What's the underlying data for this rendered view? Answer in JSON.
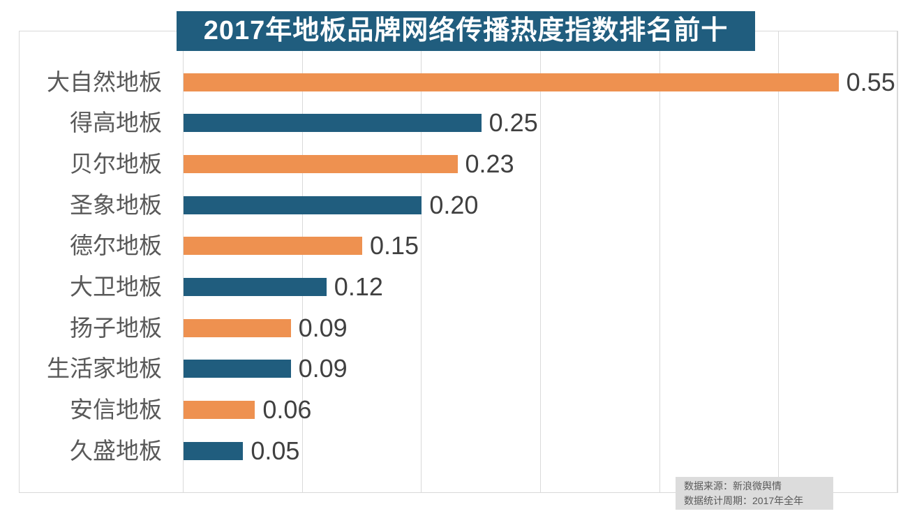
{
  "title": "2017年地板品牌网络传播热度指数排名前十",
  "chart_data": {
    "type": "bar",
    "orientation": "horizontal",
    "title": "2017年地板品牌网络传播热度指数排名前十",
    "categories": [
      "大自然地板",
      "得高地板",
      "贝尔地板",
      "圣象地板",
      "德尔地板",
      "大卫地板",
      "扬子地板",
      "生活家地板",
      "安信地板",
      "久盛地板"
    ],
    "values": [
      0.55,
      0.25,
      0.23,
      0.2,
      0.15,
      0.12,
      0.09,
      0.09,
      0.06,
      0.05
    ],
    "value_labels": [
      "0.55",
      "0.25",
      "0.23",
      "0.20",
      "0.15",
      "0.12",
      "0.09",
      "0.09",
      "0.06",
      "0.05"
    ],
    "xlabel": "",
    "ylabel": "",
    "xlim": [
      0,
      0.6
    ],
    "grid_step": 0.1,
    "grid": "vertical-lines",
    "legend_position": "none",
    "bar_color_alternation": [
      "#EE9150",
      "#205D7E"
    ]
  },
  "footer_note": {
    "line1": "数据来源：新浪微舆情",
    "line2": "数据统计周期：2017年全年"
  },
  "colors": {
    "background": "#FFFFFF",
    "title_bg": "#205D7E",
    "title_text": "#FFFFFF",
    "orange_bar": "#EE9150",
    "blue_bar": "#205D7E",
    "grid_line": "#D9D9D9",
    "category_label": "#595959",
    "value_label": "#404040",
    "note_bg": "#DCDCDC",
    "note_text": "#595959"
  }
}
